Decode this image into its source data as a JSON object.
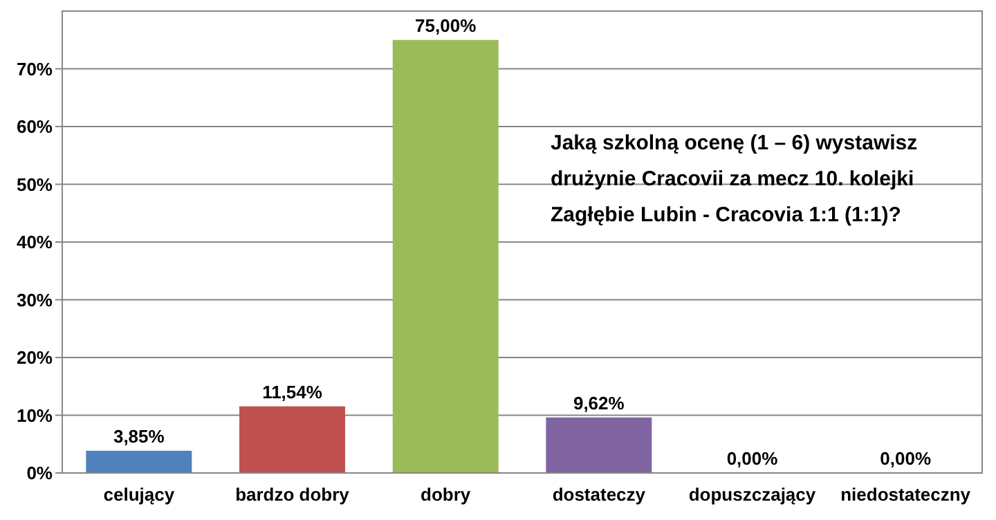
{
  "chart_data": {
    "type": "bar",
    "title": "Jaką szkolną ocenę (1 – 6) wystawisz drużynie Cracovii za mecz 10. kolejki Zagłębie Lubin - Cracovia 1:1 (1:1)?",
    "categories": [
      "celujący",
      "bardzo dobry",
      "dobry",
      "dostateczy",
      "dopuszczający",
      "niedostateczny"
    ],
    "values": [
      3.85,
      11.54,
      75,
      9.62,
      0,
      0
    ],
    "colors": [
      "#4f81bd",
      "#c0504d",
      "#9bbb59",
      "#8064a2",
      "#4bacc6",
      "#f79646"
    ],
    "value_labels": [
      "3,85%",
      "11,54%",
      "75,00%",
      "9,62%",
      "0,00%",
      "0,00%"
    ],
    "ylim": [
      0,
      80
    ],
    "yticks": [
      {
        "value": 0,
        "label": "0%"
      },
      {
        "value": 10,
        "label": "10%"
      },
      {
        "value": 20,
        "label": "20%"
      },
      {
        "value": 30,
        "label": "30%"
      },
      {
        "value": 40,
        "label": "40%"
      },
      {
        "value": 50,
        "label": "50%"
      },
      {
        "value": 60,
        "label": "60%"
      },
      {
        "value": 70,
        "label": "70%"
      }
    ],
    "grid": "y"
  }
}
